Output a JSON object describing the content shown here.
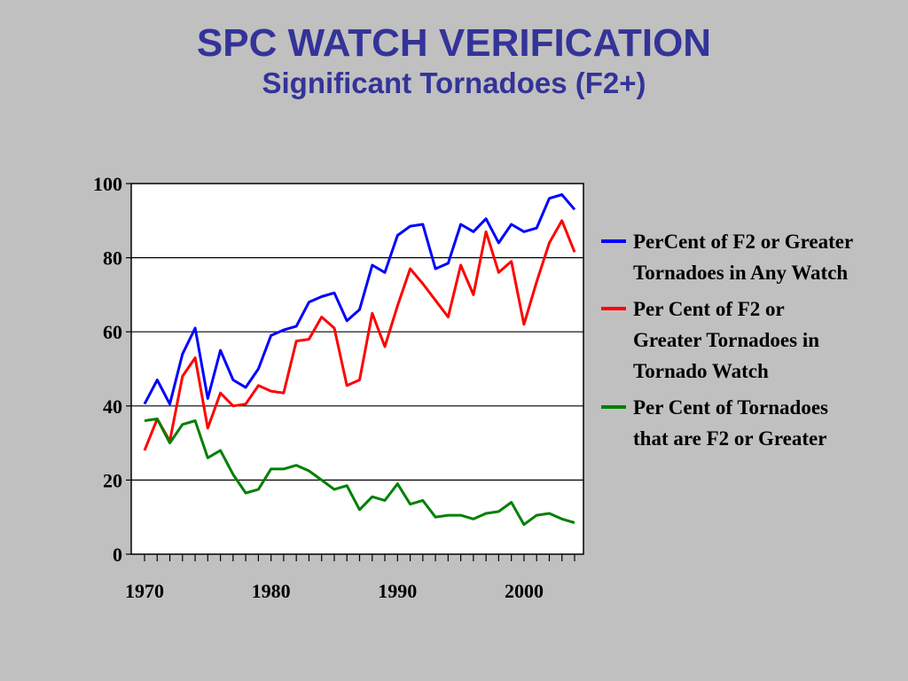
{
  "header": {
    "title": "SPC WATCH VERIFICATION",
    "subtitle": "Significant Tornadoes (F2+)"
  },
  "chart_data": {
    "type": "line",
    "xlim": [
      1970,
      2004
    ],
    "ylim": [
      0,
      100
    ],
    "x_ticks": [
      1970,
      1980,
      1990,
      2000
    ],
    "y_ticks": [
      0,
      20,
      40,
      60,
      80,
      100
    ],
    "grid": "horizontal",
    "legend_position": "right",
    "x": [
      1970,
      1971,
      1972,
      1973,
      1974,
      1975,
      1976,
      1977,
      1978,
      1979,
      1980,
      1981,
      1982,
      1983,
      1984,
      1985,
      1986,
      1987,
      1988,
      1989,
      1990,
      1991,
      1992,
      1993,
      1994,
      1995,
      1996,
      1997,
      1998,
      1999,
      2000,
      2001,
      2002,
      2003,
      2004
    ],
    "series": [
      {
        "name": "PerCent of F2 or Greater Tornadoes in Any Watch",
        "color": "#0000ff",
        "values": [
          40.5,
          47,
          40.5,
          54,
          61,
          42,
          55,
          47,
          45,
          50,
          59,
          60.5,
          61.5,
          68,
          69.5,
          70.5,
          63,
          66,
          78,
          76,
          86,
          88.5,
          89,
          77,
          78.5,
          89,
          87,
          90.5,
          84,
          89,
          87,
          88,
          96,
          97,
          93
        ]
      },
      {
        "name": "Per Cent of F2 or Greater Tornadoes in Tornado Watch",
        "color": "#ff0000",
        "values": [
          28,
          36.5,
          30.5,
          48,
          53,
          34,
          43.5,
          40,
          40.5,
          45.5,
          44,
          43.5,
          57.5,
          58,
          64,
          61,
          45.5,
          47,
          65,
          56,
          67,
          77,
          73,
          68.5,
          64,
          78,
          70,
          87,
          76,
          79,
          62,
          73.5,
          84,
          90,
          81.5
        ]
      },
      {
        "name": "Per Cent of Tornadoes that are F2 or Greater",
        "color": "#008000",
        "values": [
          36,
          36.5,
          30,
          35,
          36,
          26,
          28,
          21.5,
          16.5,
          17.5,
          23,
          23,
          24,
          22.5,
          20,
          17.5,
          18.5,
          12,
          15.5,
          14.5,
          19,
          13.5,
          14.5,
          10,
          10.5,
          10.5,
          9.5,
          11,
          11.5,
          14,
          8,
          10.5,
          11,
          9.5,
          8.5
        ]
      }
    ]
  }
}
